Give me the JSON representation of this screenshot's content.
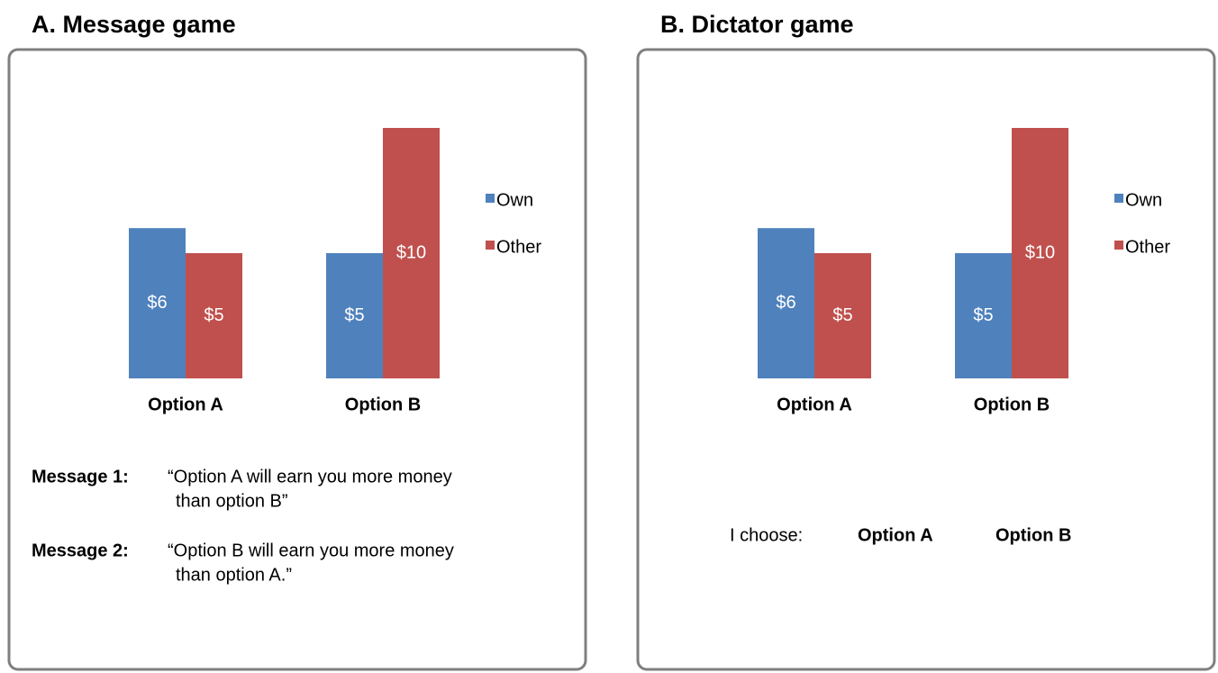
{
  "chart_data": [
    {
      "type": "bar",
      "title": "A. Message game",
      "categories": [
        "Option A",
        "Option B"
      ],
      "series": [
        {
          "name": "Own",
          "color": "#4f81bd",
          "values": [
            6,
            5
          ],
          "value_labels": [
            "$6",
            "$5"
          ]
        },
        {
          "name": "Other",
          "color": "#c0504d",
          "values": [
            5,
            10
          ],
          "value_labels": [
            "$5",
            "$10"
          ]
        }
      ],
      "ylim": [
        0,
        10
      ],
      "legend": "right",
      "messages": [
        {
          "label": "Message 1:",
          "lines": [
            "“Option A will earn you more money",
            "than option B”"
          ]
        },
        {
          "label": "Message 2:",
          "lines": [
            "“Option B will earn you  more money",
            "than option A.”"
          ]
        }
      ]
    },
    {
      "type": "bar",
      "title": "B. Dictator game",
      "categories": [
        "Option A",
        "Option B"
      ],
      "series": [
        {
          "name": "Own",
          "color": "#4f81bd",
          "values": [
            6,
            5
          ],
          "value_labels": [
            "$6",
            "$5"
          ]
        },
        {
          "name": "Other",
          "color": "#c0504d",
          "values": [
            5,
            10
          ],
          "value_labels": [
            "$5",
            "$10"
          ]
        }
      ],
      "ylim": [
        0,
        10
      ],
      "legend": "right",
      "choice": {
        "prompt": "I choose:",
        "options": [
          "Option A",
          "Option B"
        ]
      }
    }
  ]
}
